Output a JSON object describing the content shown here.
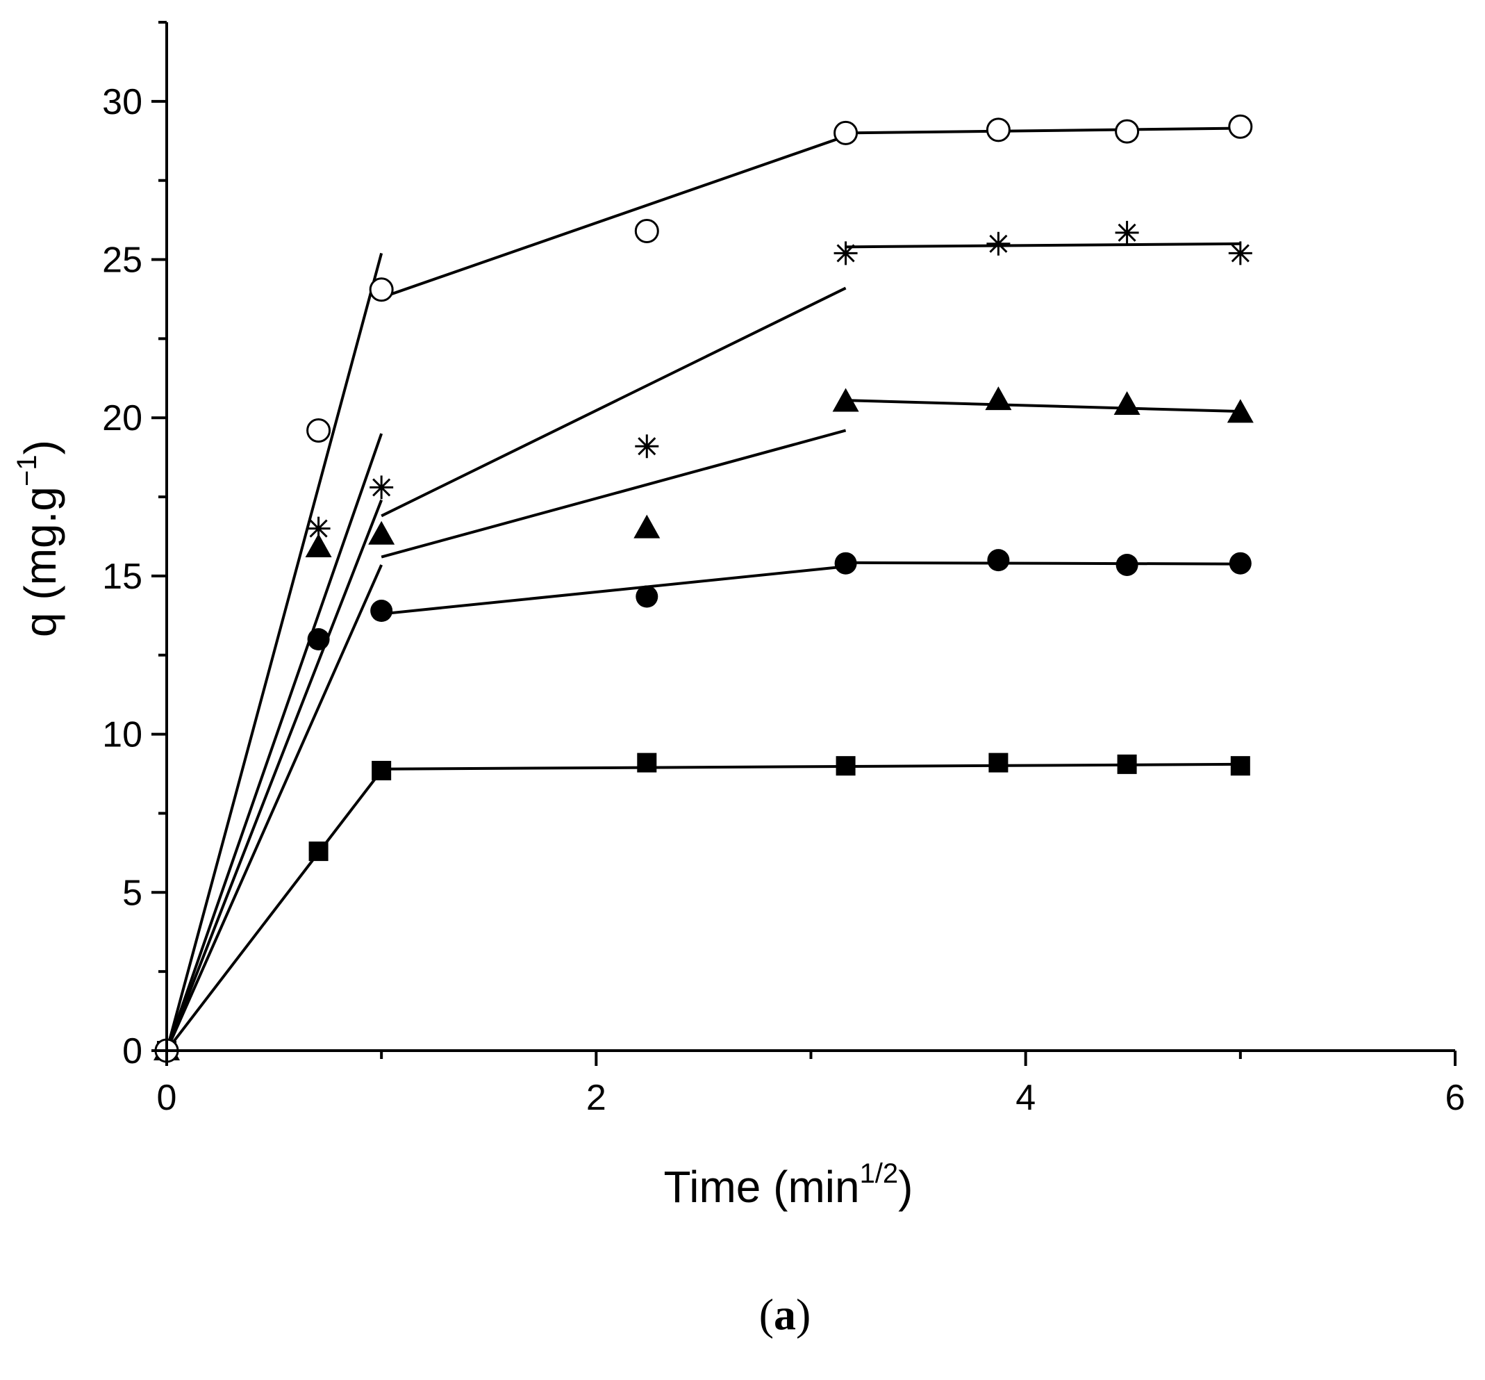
{
  "chart_data": {
    "type": "scatter",
    "title": "",
    "panel_label": {
      "open": "(",
      "letter": "a",
      "close": ")"
    },
    "xlabel": {
      "text": "Time (min",
      "sup": "1/2",
      "close": ")"
    },
    "ylabel": {
      "text": "q (mg.g",
      "sup": "−1",
      "close": ")"
    },
    "xlim": [
      0,
      6
    ],
    "ylim": [
      0,
      32.5
    ],
    "xticks": [
      0,
      2,
      4,
      6
    ],
    "yticks": [
      0,
      5,
      10,
      15,
      20,
      25,
      30
    ],
    "xtick_labels": [
      "0",
      "2",
      "4",
      "6"
    ],
    "ytick_labels": [
      "0",
      "5",
      "10",
      "15",
      "20",
      "25",
      "30"
    ],
    "grid": false,
    "legend": "none",
    "x": [
      0,
      0.707,
      1.0,
      2.236,
      3.162,
      3.873,
      4.472,
      5.0
    ],
    "series": [
      {
        "name": "series-1-filled-square",
        "marker": "filled-square",
        "values": [
          0,
          6.3,
          8.85,
          9.1,
          9.0,
          9.1,
          9.05,
          9.0
        ],
        "fit_lines": [
          [
            [
              0,
              0
            ],
            [
              1.0,
              8.85
            ]
          ],
          [
            [
              1.0,
              8.9
            ],
            [
              5.0,
              9.05
            ]
          ]
        ]
      },
      {
        "name": "series-2-filled-circle",
        "marker": "filled-circle",
        "values": [
          0,
          13.0,
          13.9,
          14.35,
          15.4,
          15.5,
          15.35,
          15.4
        ],
        "fit_lines": [
          [
            [
              0,
              0
            ],
            [
              1.0,
              15.35
            ]
          ],
          [
            [
              1.0,
              13.8
            ],
            [
              3.162,
              15.3
            ]
          ],
          [
            [
              3.162,
              15.42
            ],
            [
              5.0,
              15.38
            ]
          ]
        ]
      },
      {
        "name": "series-3-filled-triangle",
        "marker": "filled-triangle",
        "values": [
          0,
          15.9,
          16.3,
          16.5,
          20.5,
          20.55,
          20.4,
          20.15
        ],
        "fit_lines": [
          [
            [
              0,
              0
            ],
            [
              1.0,
              17.4
            ]
          ],
          [
            [
              1.0,
              15.6
            ],
            [
              3.162,
              19.6
            ]
          ],
          [
            [
              3.162,
              20.55
            ],
            [
              5.0,
              20.2
            ]
          ]
        ]
      },
      {
        "name": "series-4-asterisk",
        "marker": "asterisk",
        "values": [
          0,
          16.5,
          17.8,
          19.1,
          25.2,
          25.5,
          25.85,
          25.2
        ],
        "fit_lines": [
          [
            [
              0,
              0
            ],
            [
              1.0,
              19.5
            ]
          ],
          [
            [
              1.0,
              16.9
            ],
            [
              3.162,
              24.1
            ]
          ],
          [
            [
              3.162,
              25.4
            ],
            [
              5.0,
              25.5
            ]
          ]
        ]
      },
      {
        "name": "series-5-open-circle",
        "marker": "open-circle",
        "values": [
          0,
          19.6,
          24.05,
          25.9,
          29.0,
          29.1,
          29.05,
          29.2
        ],
        "fit_lines": [
          [
            [
              0,
              0
            ],
            [
              1.0,
              25.2
            ]
          ],
          [
            [
              1.0,
              23.8
            ],
            [
              3.162,
              28.9
            ]
          ],
          [
            [
              3.162,
              29.0
            ],
            [
              5.0,
              29.15
            ]
          ]
        ]
      }
    ]
  }
}
